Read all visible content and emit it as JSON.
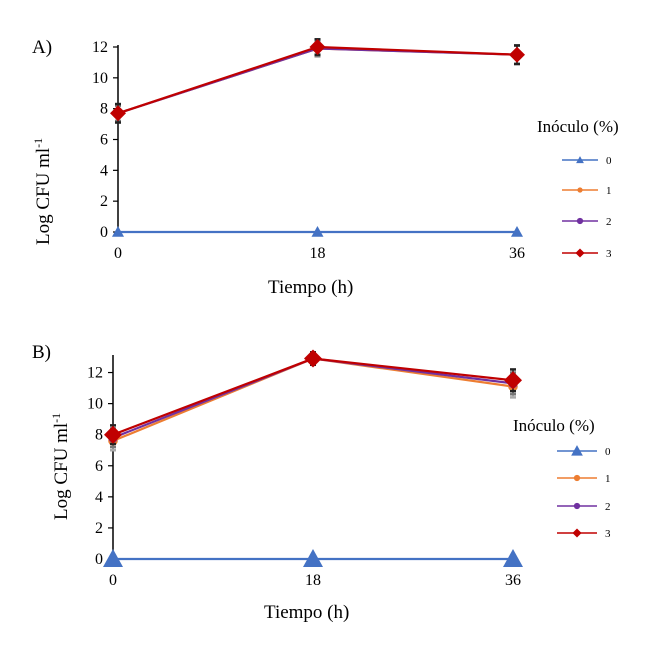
{
  "chart_data": [
    {
      "type": "line",
      "panel_label": "A)",
      "categories": [
        "0",
        "18",
        "36"
      ],
      "x": [
        0,
        18,
        36
      ],
      "series": [
        {
          "name": "0",
          "values": [
            0,
            0,
            0
          ],
          "color": "#4472C4",
          "marker": "triangle",
          "errors": [
            0,
            0,
            0
          ]
        },
        {
          "name": "1",
          "values": [
            7.7,
            11.9,
            11.5
          ],
          "color": "#ED7D31",
          "marker": "circle",
          "errors": [
            0.5,
            0.5,
            0.6
          ]
        },
        {
          "name": "2",
          "values": [
            7.7,
            11.9,
            11.5
          ],
          "color": "#7030A0",
          "marker": "circle",
          "errors": [
            0.5,
            0.5,
            0.6
          ]
        },
        {
          "name": "3",
          "values": [
            7.7,
            12.0,
            11.5
          ],
          "color": "#C00000",
          "marker": "diamond",
          "errors": [
            0.6,
            0.5,
            0.6
          ]
        }
      ],
      "yticks": [
        "0",
        "2",
        "4",
        "6",
        "8",
        "10",
        "12"
      ],
      "ylim": [
        0,
        12
      ],
      "xlabel": "Tiempo (h)",
      "ylabel": "Log CFU ml",
      "ylabel_sup": "-1",
      "legend_title": "Inóculo (%)",
      "grid": false
    },
    {
      "type": "line",
      "panel_label": "B)",
      "categories": [
        "0",
        "18",
        "36"
      ],
      "x": [
        0,
        18,
        36
      ],
      "series": [
        {
          "name": "0",
          "values": [
            0,
            0,
            0
          ],
          "color": "#4472C4",
          "marker": "triangle",
          "errors": [
            0,
            0,
            0
          ]
        },
        {
          "name": "1",
          "values": [
            7.6,
            12.9,
            11.1
          ],
          "color": "#ED7D31",
          "marker": "circle",
          "errors": [
            0.6,
            0.4,
            0.7
          ]
        },
        {
          "name": "2",
          "values": [
            7.8,
            12.9,
            11.3
          ],
          "color": "#7030A0",
          "marker": "circle",
          "errors": [
            0.6,
            0.4,
            0.7
          ]
        },
        {
          "name": "3",
          "values": [
            8.0,
            12.9,
            11.5
          ],
          "color": "#C00000",
          "marker": "diamond",
          "errors": [
            0.6,
            0.4,
            0.7
          ]
        }
      ],
      "yticks": [
        "0",
        "2",
        "4",
        "6",
        "8",
        "10",
        "12"
      ],
      "ylim": [
        0,
        13
      ],
      "xlabel": "Tiempo (h)",
      "ylabel": "Log CFU ml",
      "ylabel_sup": "-1",
      "legend_title": "Inóculo (%)",
      "grid": false
    }
  ]
}
